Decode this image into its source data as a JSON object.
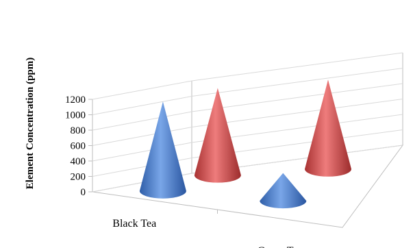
{
  "chart_data": {
    "type": "bar",
    "style": "3d-cone",
    "categories": [
      "Black Tea",
      "Green Tea"
    ],
    "series": [
      {
        "color": "#4a7fd0",
        "values": [
          1160,
          360
        ]
      },
      {
        "color": "#cc4444",
        "values": [
          1130,
          1160
        ]
      }
    ],
    "ylabel": "Element Concentration (ppm)",
    "ylim": [
      0,
      1200
    ],
    "yticks": [
      0,
      200,
      400,
      600,
      800,
      1000,
      1200
    ],
    "grid": true
  }
}
